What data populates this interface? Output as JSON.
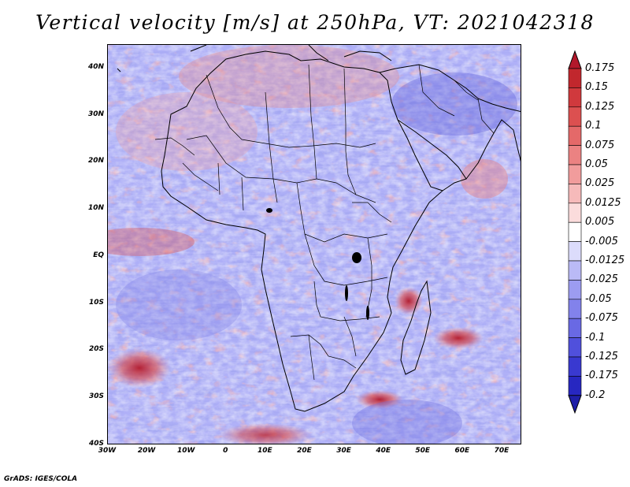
{
  "title": "Vertical velocity [m/s] at 250hPa, VT: 2021042318",
  "credit": "GrADS: IGES/COLA",
  "map": {
    "region": "Africa and surrounding oceans",
    "lon_range": [
      -30,
      75
    ],
    "lat_range": [
      -40,
      45
    ],
    "lat_ticks": [
      "40N",
      "30N",
      "20N",
      "10N",
      "EQ",
      "10S",
      "20S",
      "30S",
      "40S"
    ],
    "lon_ticks": [
      "30W",
      "20W",
      "10W",
      "0",
      "10E",
      "20E",
      "30E",
      "40E",
      "50E",
      "60E",
      "70E"
    ],
    "lat_values": [
      40,
      30,
      20,
      10,
      0,
      -10,
      -20,
      -30,
      -40
    ],
    "lon_values": [
      -30,
      -20,
      -10,
      0,
      10,
      20,
      30,
      40,
      50,
      60,
      70
    ]
  },
  "colorbar": {
    "labels": [
      "0.175",
      "0.15",
      "0.125",
      "0.1",
      "0.075",
      "0.05",
      "0.025",
      "0.0125",
      "0.005",
      "-0.005",
      "-0.0125",
      "-0.025",
      "-0.05",
      "-0.075",
      "-0.1",
      "-0.125",
      "-0.175",
      "-0.2"
    ],
    "colors": [
      "#b2182b",
      "#c1272d",
      "#d0393d",
      "#dc5050",
      "#e46969",
      "#eb8282",
      "#f19c9c",
      "#f6baba",
      "#fbdcdc",
      "#ffffff",
      "#dcdcfb",
      "#baBaf6",
      "#9c9cf1",
      "#8282eb",
      "#6969e4",
      "#5050dc",
      "#3939d0",
      "#2727c1",
      "#1f1fa8"
    ]
  }
}
